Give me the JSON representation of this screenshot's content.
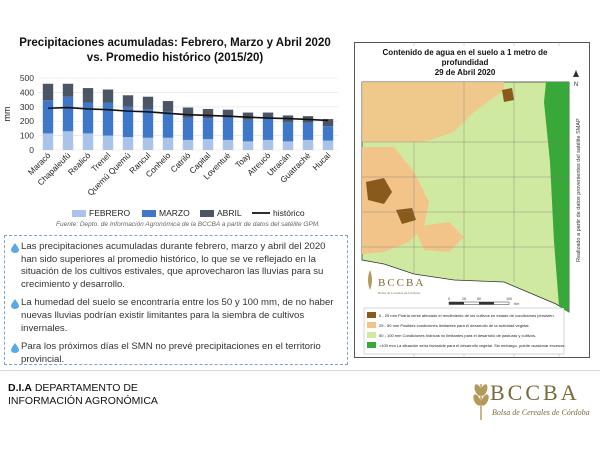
{
  "chart_data": {
    "type": "bar",
    "stacked": true,
    "title": "Precipitaciones acumuladas: Febrero, Marzo y Abril 2020 vs. Promedio histórico (2015/20)",
    "ylabel": "mm",
    "ylim": [
      0,
      500
    ],
    "yticks": [
      0,
      100,
      200,
      300,
      400,
      500
    ],
    "categories": [
      "Maracó",
      "Chapaleufú",
      "Realicó",
      "Trenel",
      "Quemú Quemú",
      "Rancul",
      "Conhelo",
      "Catriló",
      "Capital",
      "Loventué",
      "Toay",
      "Atreucó",
      "Utracán",
      "Guatraché",
      "Hucal"
    ],
    "series": [
      {
        "name": "FEBRERO",
        "color": "#a9c4e8",
        "values": [
          115,
          130,
          115,
          100,
          90,
          85,
          85,
          70,
          75,
          70,
          60,
          70,
          60,
          70,
          65
        ]
      },
      {
        "name": "MARZO",
        "color": "#3f78c8",
        "values": [
          230,
          240,
          215,
          230,
          210,
          200,
          180,
          155,
          145,
          155,
          150,
          150,
          135,
          120,
          100
        ]
      },
      {
        "name": "ABRIL",
        "color": "#4b5563",
        "values": [
          115,
          90,
          100,
          90,
          80,
          85,
          75,
          70,
          65,
          55,
          50,
          40,
          45,
          45,
          50
        ]
      }
    ],
    "line": {
      "name": "histórico",
      "color": "#111111",
      "values": [
        290,
        295,
        285,
        280,
        270,
        265,
        255,
        245,
        240,
        235,
        228,
        222,
        218,
        212,
        205
      ]
    },
    "legend_position": "bottom"
  },
  "source": "Fuente: Depto. de Información Agronómica de la BCCBA a partir de datos del satélite GPM.",
  "info": [
    "Las precipitaciones acumuladas durante febrero, marzo y abril del 2020 han sido superiores al promedio histórico, lo que se ve reflejado en la situación de los cultivos estivales, que aprovecharon las lluvias para su crecimiento y desarrollo.",
    "La humedad del suelo se encontraría entre los 50 y 100 mm, de no haber nuevas lluvias podrían existir limitantes para la siembra de cultivos invernales.",
    "Para los próximos días el SMN no prevé precipitaciones en el territorio provincial."
  ],
  "map": {
    "title": "Contenido de agua en el suelo a 1 metro de profundidad",
    "date": "29 de Abril 2020",
    "side_note": "Realizado a partir de datos provenientes del satélite SMAP",
    "north": "N",
    "scale_label": "Km",
    "scale_ticks": [
      "0",
      "25",
      "50",
      "100"
    ],
    "logo_name": "BCCBA",
    "logo_sub": "Bolsa de Cereales de Córdoba",
    "legend": [
      {
        "color": "#8a5a1c",
        "text": "0 - 25 mm Podría verse afectado el rendimiento de los cultivos en estado de condiciones persisten."
      },
      {
        "color": "#f2c48a",
        "text": "25 - 50 mm Posibles condiciones limitantes para el desarrollo de la actividad vegetal."
      },
      {
        "color": "#cfe9a0",
        "text": "50 - 100 mm Condiciones hídricas no limitantes para el desarrollo de pasturas y cultivos."
      },
      {
        "color": "#39a83a",
        "text": ">100 mm La situación sería favorable para el desarrollo vegetal. Sin embargo, puede ocasionar excesos."
      }
    ]
  },
  "footer": {
    "dept_bold": "D.I.A",
    "dept_line1": " DEPARTAMENTO DE",
    "dept_line2": "INFORMACIÓN AGRONÓMICA",
    "logo_name": "BCCBA",
    "logo_sub": "Bolsa de Cereales de Córdoba"
  }
}
